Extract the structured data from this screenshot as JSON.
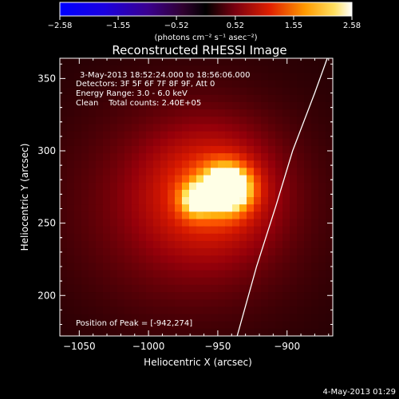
{
  "chart_data": {
    "type": "heatmap",
    "title": "Reconstructed RHESSI Image",
    "colorbar": {
      "ticks": [
        "-2.58",
        "-1.55",
        "-0.52",
        "0.52",
        "1.55",
        "2.58"
      ],
      "range": [
        -2.58,
        2.58
      ],
      "unit_text": "(photons cm⁻² s⁻¹ asec⁻²)"
    },
    "xlabel": "Heliocentric X (arcsec)",
    "ylabel": "Heliocentric Y (arcsec)",
    "xlim": [
      -1064,
      -867
    ],
    "ylim": [
      172,
      364
    ],
    "xticks": [
      {
        "v": -1050,
        "label": "−1050"
      },
      {
        "v": -1000,
        "label": "−1000"
      },
      {
        "v": -950,
        "label": "−950"
      },
      {
        "v": -900,
        "label": "−900"
      }
    ],
    "yticks": [
      {
        "v": 200,
        "label": "200"
      },
      {
        "v": 250,
        "label": "250"
      },
      {
        "v": 300,
        "label": "300"
      },
      {
        "v": 350,
        "label": "350"
      }
    ],
    "annotations": [
      "3-May-2013 18:52:24.000 to 18:56:06.000",
      "Detectors: 3F 5F 6F 7F 8F 9F, Att 0",
      "Energy Range: 3.0 - 6.0 keV",
      "Clean    Total counts: 2.40E+05"
    ],
    "peak_text": "Position of Peak = [-942,274]",
    "timestamp": "4-May-2013 01:29",
    "sources": [
      {
        "x": -943,
        "y": 274,
        "sx": 12,
        "sy": 11,
        "amp": 2.58
      },
      {
        "x": -966,
        "y": 266,
        "sx": 8,
        "sy": 8,
        "amp": 1.35
      },
      {
        "x": -955,
        "y": 272,
        "sx": 30,
        "sy": 28,
        "amp": 0.9
      },
      {
        "x": -970,
        "y": 262,
        "sx": 60,
        "sy": 52,
        "amp": 0.6
      }
    ],
    "background_level": 0.18,
    "limb_curve": [
      {
        "x": -936,
        "y": 172
      },
      {
        "x": -922,
        "y": 220
      },
      {
        "x": -908,
        "y": 262
      },
      {
        "x": -896,
        "y": 300
      },
      {
        "x": -880,
        "y": 340
      },
      {
        "x": -871,
        "y": 364
      }
    ],
    "colors": {
      "background": "#000000",
      "limb": "#ffffff",
      "text": "#ffffff"
    }
  }
}
